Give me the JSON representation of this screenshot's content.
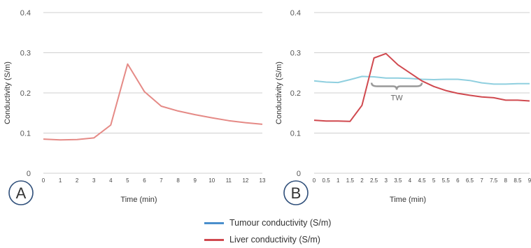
{
  "colors": {
    "grid": "#cfcfcf",
    "liver": "#d0494f",
    "liver_light": "#e58a86",
    "tumour": "#8fcfdf",
    "tumour_legend": "#4a8fcc",
    "brace": "#999999",
    "circle": "#2f4f7a"
  },
  "legend": [
    {
      "label": "Tumour conductivity (S/m)",
      "color_key": "tumour_legend"
    },
    {
      "label": "Liver conductivity (S/m)",
      "color_key": "liver"
    }
  ],
  "chart_data": [
    {
      "type": "line",
      "panel_label": "A",
      "xlabel": "Time (min)",
      "ylabel": "Conductivity (S/m)",
      "xlim": [
        0,
        13
      ],
      "ylim": [
        0,
        0.4
      ],
      "xticks": [
        "0",
        "1",
        "2",
        "3",
        "4",
        "5",
        "6",
        "7",
        "8",
        "9",
        "10",
        "11",
        "12",
        "13"
      ],
      "yticks": [
        "0",
        "0.1",
        "0.2",
        "0.3",
        "0.4"
      ],
      "grid": true,
      "series": [
        {
          "color_key": "liver_light",
          "x": [
            0,
            1,
            2,
            3,
            4,
            5,
            6,
            7,
            8,
            9,
            10,
            11,
            12,
            13
          ],
          "y": [
            0.085,
            0.083,
            0.084,
            0.088,
            0.12,
            0.272,
            0.203,
            0.167,
            0.155,
            0.146,
            0.138,
            0.131,
            0.126,
            0.122
          ]
        }
      ]
    },
    {
      "type": "line",
      "panel_label": "B",
      "xlabel": "Time (min)",
      "ylabel": "Conductivity (S/m)",
      "xlim": [
        0,
        9
      ],
      "ylim": [
        0,
        0.4
      ],
      "xticks": [
        "0",
        "0.5",
        "1",
        "1.5",
        "2",
        "2.5",
        "3",
        "3.5",
        "4",
        "4.5",
        "5",
        "5.5",
        "6",
        "6.5",
        "7",
        "7.5",
        "8",
        "8.5",
        "9"
      ],
      "yticks": [
        "0",
        "0.1",
        "0.2",
        "0.3",
        "0.4"
      ],
      "grid": true,
      "annotations": [
        {
          "text": "TW",
          "x_from": 2.4,
          "x_to": 4.5,
          "y": 0.22
        }
      ],
      "series": [
        {
          "name": "Tumour conductivity (S/m)",
          "color_key": "tumour",
          "x": [
            0,
            0.5,
            1,
            1.5,
            2,
            2.5,
            3,
            3.5,
            4,
            4.5,
            5,
            5.5,
            6,
            6.5,
            7,
            7.5,
            8,
            8.5,
            9
          ],
          "y": [
            0.23,
            0.227,
            0.226,
            0.233,
            0.241,
            0.24,
            0.237,
            0.237,
            0.236,
            0.234,
            0.233,
            0.234,
            0.234,
            0.231,
            0.225,
            0.222,
            0.222,
            0.223,
            0.223
          ]
        },
        {
          "name": "Liver conductivity (S/m)",
          "color_key": "liver",
          "x": [
            0,
            0.5,
            1,
            1.5,
            2,
            2.5,
            3,
            3.5,
            4,
            4.5,
            5,
            5.5,
            6,
            6.5,
            7,
            7.5,
            8,
            8.5,
            9
          ],
          "y": [
            0.132,
            0.13,
            0.13,
            0.129,
            0.169,
            0.287,
            0.298,
            0.27,
            0.25,
            0.23,
            0.216,
            0.206,
            0.199,
            0.194,
            0.19,
            0.188,
            0.182,
            0.182,
            0.18
          ]
        }
      ]
    }
  ]
}
